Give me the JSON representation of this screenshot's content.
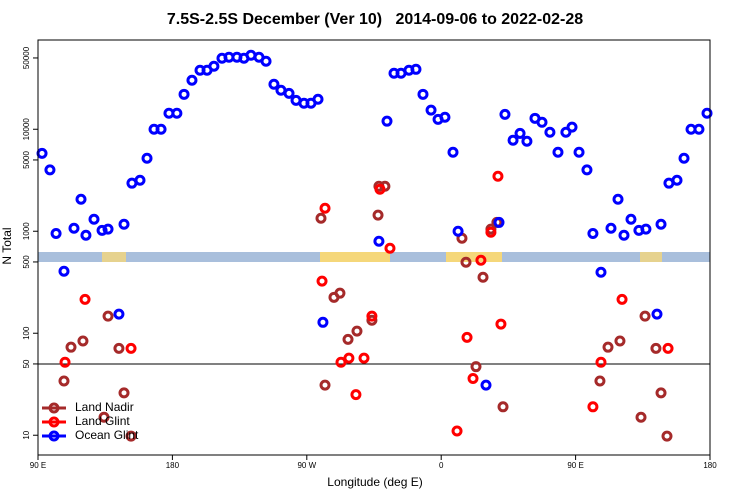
{
  "chart_data": {
    "type": "scatter",
    "title": "7.5S-2.5S December (Ver 10)   2014-09-06 to 2022-02-28",
    "x_label": "Longitude (deg E)",
    "y_label": "N Total",
    "xlim": [
      90,
      540
    ],
    "xticks": [
      {
        "value": 90,
        "label": "90 E"
      },
      {
        "value": 180,
        "label": "180"
      },
      {
        "value": 270,
        "label": "90 W"
      },
      {
        "value": 360,
        "label": "0"
      },
      {
        "value": 450,
        "label": "90 E"
      },
      {
        "value": 540,
        "label": "180"
      }
    ],
    "ylim": [
      6.4,
      75000
    ],
    "yticks": [
      10,
      50,
      100,
      500,
      1000,
      5000,
      10000,
      50000
    ],
    "log_y": true,
    "hline": 50,
    "legend": "bottomleft",
    "series": [
      {
        "name": "Land Nadir",
        "color": "#a52a2a",
        "x": [
          107.4,
          112.1,
          120.1,
          134.2,
          136.9,
          144.2,
          147.6,
          152.3,
          279.5,
          282.2,
          288.2,
          292.2,
          297.6,
          303.6,
          313.6,
          317.7,
          318.3,
          322.3,
          373.9,
          376.6,
          383.3,
          388.0,
          393.3,
          397.3,
          401.4,
          466.3,
          471.7,
          479.7,
          493.8,
          496.5,
          503.8,
          507.2,
          511.2
        ],
        "values": [
          34,
          73,
          84,
          15,
          147,
          71,
          26,
          9.8,
          1340,
          31,
          225,
          247,
          87,
          105,
          134,
          1440,
          2760,
          2760,
          854,
          497,
          47,
          354,
          1050,
          1220,
          19,
          34,
          73,
          84,
          15,
          147,
          71,
          26,
          9.8
        ]
      },
      {
        "name": "Land Glint",
        "color": "#ff0000",
        "x": [
          108.1,
          121.5,
          152.3,
          280.2,
          282.2,
          292.9,
          298.2,
          302.9,
          308.3,
          313.6,
          319.0,
          325.7,
          370.6,
          377.3,
          381.3,
          386.6,
          393.3,
          398.0,
          400.0,
          461.6,
          467.0,
          481.1,
          511.9
        ],
        "values": [
          52,
          215,
          71,
          324,
          1680,
          52,
          57,
          25,
          57,
          147,
          2580,
          681,
          11,
          91,
          36,
          520,
          978,
          3460,
          123,
          19,
          52,
          215,
          71
        ]
      },
      {
        "name": "Ocean Glint",
        "color": "#0000ff",
        "x": [
          92.7,
          98.0,
          102.1,
          107.4,
          114.1,
          118.8,
          122.1,
          127.5,
          132.9,
          136.9,
          144.2,
          147.6,
          152.9,
          158.3,
          163.0,
          167.7,
          172.4,
          177.7,
          183.0,
          187.8,
          193.1,
          198.5,
          203.2,
          207.8,
          213.2,
          217.9,
          223.2,
          227.9,
          232.6,
          238.0,
          242.7,
          248.0,
          252.7,
          258.1,
          262.8,
          268.1,
          272.8,
          277.5,
          280.8,
          318.3,
          323.7,
          328.4,
          333.1,
          338.4,
          343.1,
          347.8,
          353.2,
          357.9,
          362.5,
          367.9,
          371.3,
          390.0,
          398.7,
          402.7,
          408.1,
          412.8,
          417.4,
          422.8,
          427.5,
          432.8,
          438.2,
          443.5,
          447.6,
          452.3,
          457.6,
          461.6,
          467.0,
          473.7,
          478.4,
          482.4,
          487.1,
          492.4,
          497.1,
          504.5,
          507.2,
          512.5,
          517.9,
          522.6,
          527.3,
          532.6,
          538.0
        ],
        "values": [
          5800,
          4000,
          950,
          405,
          1070,
          2060,
          914,
          1310,
          1020,
          1050,
          154,
          1170,
          2960,
          3160,
          5200,
          10000,
          10000,
          14350,
          14350,
          22000,
          30200,
          37900,
          37900,
          41500,
          49700,
          50800,
          50800,
          49700,
          53100,
          50800,
          46400,
          27600,
          24100,
          22500,
          19200,
          18000,
          18000,
          19700,
          128,
          798,
          12000,
          35400,
          35400,
          37900,
          38700,
          22000,
          15400,
          12500,
          13100,
          5950,
          1000,
          31,
          1220,
          14000,
          7800,
          9100,
          7620,
          12800,
          11700,
          9340,
          5950,
          9340,
          10500,
          5950,
          4000,
          950,
          396,
          1070,
          2060,
          914,
          1310,
          1020,
          1050,
          154,
          1170,
          2960,
          3160,
          5200,
          10000,
          10000,
          14350
        ]
      }
    ]
  }
}
